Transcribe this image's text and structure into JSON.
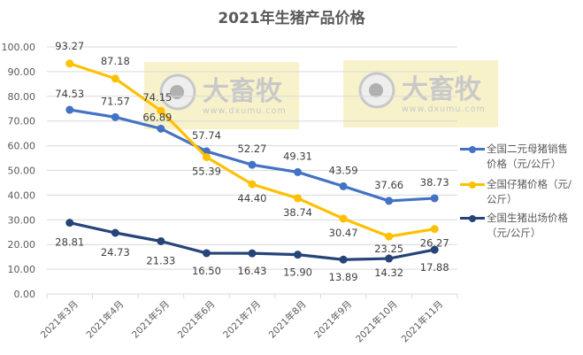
{
  "chart_data": {
    "type": "line",
    "title": "2021年生猪产品价格",
    "xlabel": "",
    "ylabel": "",
    "categories": [
      "2021年3月",
      "2021年4月",
      "2021年5月",
      "2021年6月",
      "2021年7月",
      "2021年8月",
      "2021年9月",
      "2021年10月",
      "2021年11月"
    ],
    "series": [
      {
        "name": "全国二元母猪销售价格（元/公斤）",
        "color": "#4472C4",
        "values": [
          74.53,
          71.57,
          66.89,
          57.74,
          52.27,
          49.31,
          43.59,
          37.66,
          38.73
        ],
        "label_position": "above"
      },
      {
        "name": "全国仔猪价格（元/公斤）",
        "color": "#FFC000",
        "values": [
          93.27,
          87.18,
          74.15,
          55.39,
          44.4,
          38.74,
          30.47,
          23.25,
          26.27
        ],
        "label_position": "mixed"
      },
      {
        "name": "全国生猪出场价格（元/公斤）",
        "color": "#264478",
        "values": [
          28.81,
          24.73,
          21.33,
          16.5,
          16.43,
          15.9,
          13.89,
          14.32,
          17.88
        ],
        "label_position": "below"
      }
    ],
    "ylim": [
      0,
      100
    ],
    "yticks": [
      "0.00",
      "10.00",
      "20.00",
      "30.00",
      "40.00",
      "50.00",
      "60.00",
      "70.00",
      "80.00",
      "90.00",
      "100.00"
    ],
    "grid": true,
    "legend_position": "right",
    "data_labels": true
  },
  "legend": {
    "items": [
      {
        "label": "全国二元母猪销售价格（元/公斤）",
        "color": "#4472C4"
      },
      {
        "label": "全国仔猪价格（元/公斤）",
        "color": "#FFC000"
      },
      {
        "label": "全国生猪出场价格（元/公斤）",
        "color": "#264478"
      }
    ]
  },
  "watermark": {
    "text": "大畜牧",
    "url_text": "www.dxumu.com"
  }
}
